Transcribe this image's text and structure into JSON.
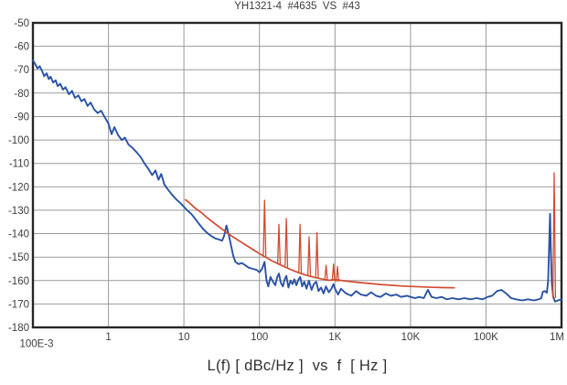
{
  "chart_data": {
    "type": "line",
    "title": "YH1321-4  #4635  VS  #43",
    "xlabel": "L(f) [ dBc/Hz ]  vs  f  [ Hz ]",
    "x_scale": "log",
    "xlim": [
      0.1,
      1000000
    ],
    "ylim": [
      -180,
      -50
    ],
    "grid": true,
    "background": "#ffffff",
    "frame_color": "#262626",
    "grid_color": "#9a9a9a",
    "text_color": "#3d3d3d",
    "x_ticks": [
      {
        "v": 0.1,
        "label": "100E-3",
        "dx": 4,
        "dy": 7.5
      },
      {
        "v": 1,
        "label": "1"
      },
      {
        "v": 10,
        "label": "10"
      },
      {
        "v": 100,
        "label": "100"
      },
      {
        "v": 1000,
        "label": "1K"
      },
      {
        "v": 10000,
        "label": "10K"
      },
      {
        "v": 100000,
        "label": "100K"
      },
      {
        "v": 1000000,
        "label": "1M",
        "dx": -5
      }
    ],
    "y_ticks": [
      -50,
      -60,
      -70,
      -80,
      -90,
      -100,
      -110,
      -120,
      -130,
      -140,
      -150,
      -160,
      -170,
      -180
    ],
    "series": [
      {
        "name": "measured-unit-4635",
        "label": "#4635",
        "color": "#2a52a4",
        "width": 1.9,
        "points": [
          [
            0.1,
            -66
          ],
          [
            0.107,
            -67.5
          ],
          [
            0.115,
            -69.5
          ],
          [
            0.123,
            -68.5
          ],
          [
            0.132,
            -70.5
          ],
          [
            0.141,
            -72.8
          ],
          [
            0.152,
            -71.5
          ],
          [
            0.162,
            -74
          ],
          [
            0.172,
            -73
          ],
          [
            0.185,
            -75.5
          ],
          [
            0.2,
            -74.5
          ],
          [
            0.213,
            -77
          ],
          [
            0.23,
            -76
          ],
          [
            0.25,
            -78.5
          ],
          [
            0.27,
            -77.5
          ],
          [
            0.3,
            -80.5
          ],
          [
            0.33,
            -79
          ],
          [
            0.36,
            -82
          ],
          [
            0.4,
            -81
          ],
          [
            0.44,
            -83.5
          ],
          [
            0.48,
            -82.5
          ],
          [
            0.53,
            -85.5
          ],
          [
            0.58,
            -84
          ],
          [
            0.65,
            -87
          ],
          [
            0.72,
            -88.5
          ],
          [
            0.8,
            -87.5
          ],
          [
            0.9,
            -90.5
          ],
          [
            1.0,
            -93
          ],
          [
            1.1,
            -97.5
          ],
          [
            1.2,
            -94.5
          ],
          [
            1.35,
            -98
          ],
          [
            1.5,
            -100
          ],
          [
            1.65,
            -99
          ],
          [
            1.85,
            -102
          ],
          [
            2.1,
            -103.5
          ],
          [
            2.4,
            -105.5
          ],
          [
            2.7,
            -107.5
          ],
          [
            3.0,
            -110
          ],
          [
            3.4,
            -112.5
          ],
          [
            3.8,
            -115
          ],
          [
            4.2,
            -113
          ],
          [
            4.6,
            -117
          ],
          [
            5.0,
            -114.5
          ],
          [
            5.5,
            -119
          ],
          [
            6.1,
            -121
          ],
          [
            7.0,
            -123.5
          ],
          [
            8.0,
            -125.5
          ],
          [
            9.0,
            -127
          ],
          [
            10,
            -128.5
          ],
          [
            11,
            -130
          ],
          [
            12.5,
            -131.5
          ],
          [
            14,
            -133.5
          ],
          [
            16,
            -136
          ],
          [
            18,
            -138
          ],
          [
            20,
            -139.5
          ],
          [
            23,
            -141
          ],
          [
            26,
            -142
          ],
          [
            29,
            -142.5
          ],
          [
            32,
            -143
          ],
          [
            34,
            -141
          ],
          [
            36.5,
            -136.5
          ],
          [
            39,
            -140
          ],
          [
            42,
            -145
          ],
          [
            45,
            -149.5
          ],
          [
            48,
            -152
          ],
          [
            53,
            -153
          ],
          [
            58,
            -152.5
          ],
          [
            65,
            -153.5
          ],
          [
            72,
            -154.5
          ],
          [
            82,
            -155
          ],
          [
            92,
            -155.5
          ],
          [
            100,
            -156.5
          ],
          [
            108,
            -155
          ],
          [
            117,
            -152
          ],
          [
            124,
            -160
          ],
          [
            131,
            -162.5
          ],
          [
            140,
            -158.5
          ],
          [
            151,
            -160.5
          ],
          [
            162,
            -162
          ],
          [
            172,
            -158.5
          ],
          [
            181,
            -157
          ],
          [
            192,
            -161
          ],
          [
            204,
            -162.5
          ],
          [
            216,
            -159.5
          ],
          [
            227,
            -158
          ],
          [
            242,
            -163
          ],
          [
            258,
            -160
          ],
          [
            274,
            -161.5
          ],
          [
            290,
            -159.5
          ],
          [
            308,
            -162
          ],
          [
            330,
            -159.5
          ],
          [
            347,
            -158.5
          ],
          [
            368,
            -162.5
          ],
          [
            392,
            -160.5
          ],
          [
            420,
            -163.5
          ],
          [
            452,
            -160
          ],
          [
            490,
            -164
          ],
          [
            525,
            -161.5
          ],
          [
            565,
            -160.5
          ],
          [
            605,
            -164.5
          ],
          [
            655,
            -163
          ],
          [
            705,
            -165.5
          ],
          [
            760,
            -162.5
          ],
          [
            830,
            -165
          ],
          [
            900,
            -163.5
          ],
          [
            955,
            -161.5
          ],
          [
            1000,
            -163.5
          ],
          [
            1100,
            -166
          ],
          [
            1200,
            -163.5
          ],
          [
            1400,
            -165.5
          ],
          [
            1650,
            -166.5
          ],
          [
            1900,
            -164.5
          ],
          [
            2200,
            -166
          ],
          [
            2600,
            -166.5
          ],
          [
            3000,
            -165
          ],
          [
            3500,
            -166.5
          ],
          [
            4000,
            -167
          ],
          [
            4700,
            -165.5
          ],
          [
            5500,
            -166.5
          ],
          [
            6500,
            -166
          ],
          [
            7500,
            -167
          ],
          [
            9000,
            -166.5
          ],
          [
            10000,
            -167
          ],
          [
            11500,
            -167.5
          ],
          [
            13000,
            -167
          ],
          [
            15000,
            -167.5
          ],
          [
            17000,
            -164
          ],
          [
            19000,
            -167
          ],
          [
            22000,
            -167.5
          ],
          [
            26000,
            -167
          ],
          [
            30000,
            -168
          ],
          [
            36000,
            -167.5
          ],
          [
            43000,
            -168
          ],
          [
            52000,
            -167.5
          ],
          [
            62000,
            -168
          ],
          [
            75000,
            -167.5
          ],
          [
            90000,
            -168
          ],
          [
            105000,
            -167
          ],
          [
            120000,
            -166.5
          ],
          [
            140000,
            -164.5
          ],
          [
            160000,
            -164
          ],
          [
            185000,
            -165.5
          ],
          [
            215000,
            -167.5
          ],
          [
            250000,
            -168
          ],
          [
            300000,
            -168.5
          ],
          [
            360000,
            -168
          ],
          [
            430000,
            -168.5
          ],
          [
            500000,
            -168
          ],
          [
            540000,
            -167.5
          ],
          [
            565000,
            -164.8
          ],
          [
            600000,
            -164.5
          ],
          [
            640000,
            -165.2
          ],
          [
            665000,
            -160
          ],
          [
            690000,
            -142
          ],
          [
            705000,
            -131.5
          ],
          [
            722000,
            -146
          ],
          [
            745000,
            -161
          ],
          [
            775000,
            -167
          ],
          [
            820000,
            -169
          ],
          [
            900000,
            -168.5
          ],
          [
            1000000,
            -168
          ]
        ],
        "spikes": []
      },
      {
        "name": "reference-unit-43",
        "label": "#43",
        "color": "#d14b31",
        "width": 1.7,
        "points": [
          [
            10.5,
            -125.5
          ],
          [
            12,
            -127
          ],
          [
            14,
            -129
          ],
          [
            17,
            -131
          ],
          [
            20,
            -133
          ],
          [
            24,
            -135
          ],
          [
            29,
            -137
          ],
          [
            35,
            -139
          ],
          [
            42,
            -140.8
          ],
          [
            50,
            -142.4
          ],
          [
            60,
            -144
          ],
          [
            72,
            -145.6
          ],
          [
            86,
            -147.2
          ],
          [
            100,
            -148.5
          ],
          [
            120,
            -150
          ],
          [
            145,
            -151.5
          ],
          [
            175,
            -152.8
          ],
          [
            210,
            -154
          ],
          [
            255,
            -155.2
          ],
          [
            310,
            -156.3
          ],
          [
            380,
            -157.3
          ],
          [
            460,
            -158.1
          ],
          [
            560,
            -158.8
          ],
          [
            680,
            -159.4
          ],
          [
            830,
            -159.9
          ],
          [
            1000,
            -159.6
          ],
          [
            1300,
            -160.1
          ],
          [
            1700,
            -160.5
          ],
          [
            2200,
            -160.9
          ],
          [
            3000,
            -161.3
          ],
          [
            4000,
            -161.7
          ],
          [
            5500,
            -162
          ],
          [
            7500,
            -162.3
          ],
          [
            10000,
            -162.5
          ],
          [
            14000,
            -162.7
          ],
          [
            20000,
            -162.9
          ],
          [
            28000,
            -163
          ],
          [
            38000,
            -163.1
          ]
        ],
        "spikes": [
          [
            117,
            -125.7,
            -149.8
          ],
          [
            181,
            -136,
            -153
          ],
          [
            227,
            -133.5,
            -154.5
          ],
          [
            345,
            -136,
            -156.8
          ],
          [
            455,
            -141.3,
            -158
          ],
          [
            577,
            -139.5,
            -159
          ],
          [
            763,
            -153.5,
            -159.7
          ],
          [
            957,
            -153,
            -160.2
          ],
          [
            1080,
            -154,
            -160.5
          ],
          [
            800000,
            -114,
            -167.5
          ]
        ]
      }
    ]
  }
}
